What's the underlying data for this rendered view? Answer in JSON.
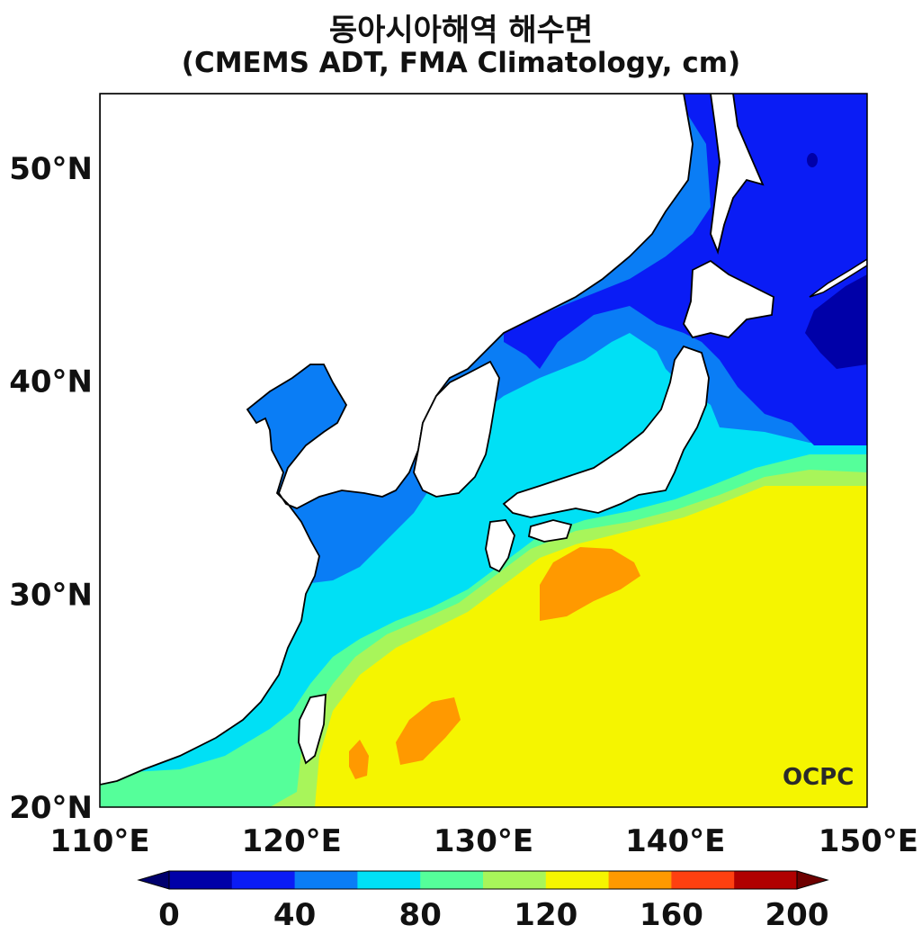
{
  "title": {
    "line1": "동아시아해역 해수면",
    "line2": "(CMEMS ADT, FMA Climatology, cm)"
  },
  "map": {
    "lon_range": [
      110,
      150
    ],
    "lat_range": [
      20,
      53.5
    ],
    "lon_ticks": [
      "110°E",
      "120°E",
      "130°E",
      "140°E",
      "150°E"
    ],
    "lat_ticks": [
      "20°N",
      "30°N",
      "40°N",
      "50°N"
    ],
    "land_color": "#ffffff",
    "coastline_color": "#000000",
    "logo_text": "OCPC"
  },
  "colorbar": {
    "levels": [
      0,
      20,
      40,
      60,
      80,
      100,
      120,
      140,
      160,
      180,
      200
    ],
    "tick_labels": [
      "0",
      "40",
      "80",
      "120",
      "160",
      "200"
    ],
    "colors": [
      "#0000a8",
      "#0a1cf5",
      "#0a7df5",
      "#00e0f5",
      "#55ff9a",
      "#a8f55a",
      "#f5f500",
      "#ff9900",
      "#ff4010",
      "#b00000"
    ],
    "under_color": "#00006e",
    "over_color": "#6e0000",
    "extend": "both",
    "units": "cm"
  }
}
